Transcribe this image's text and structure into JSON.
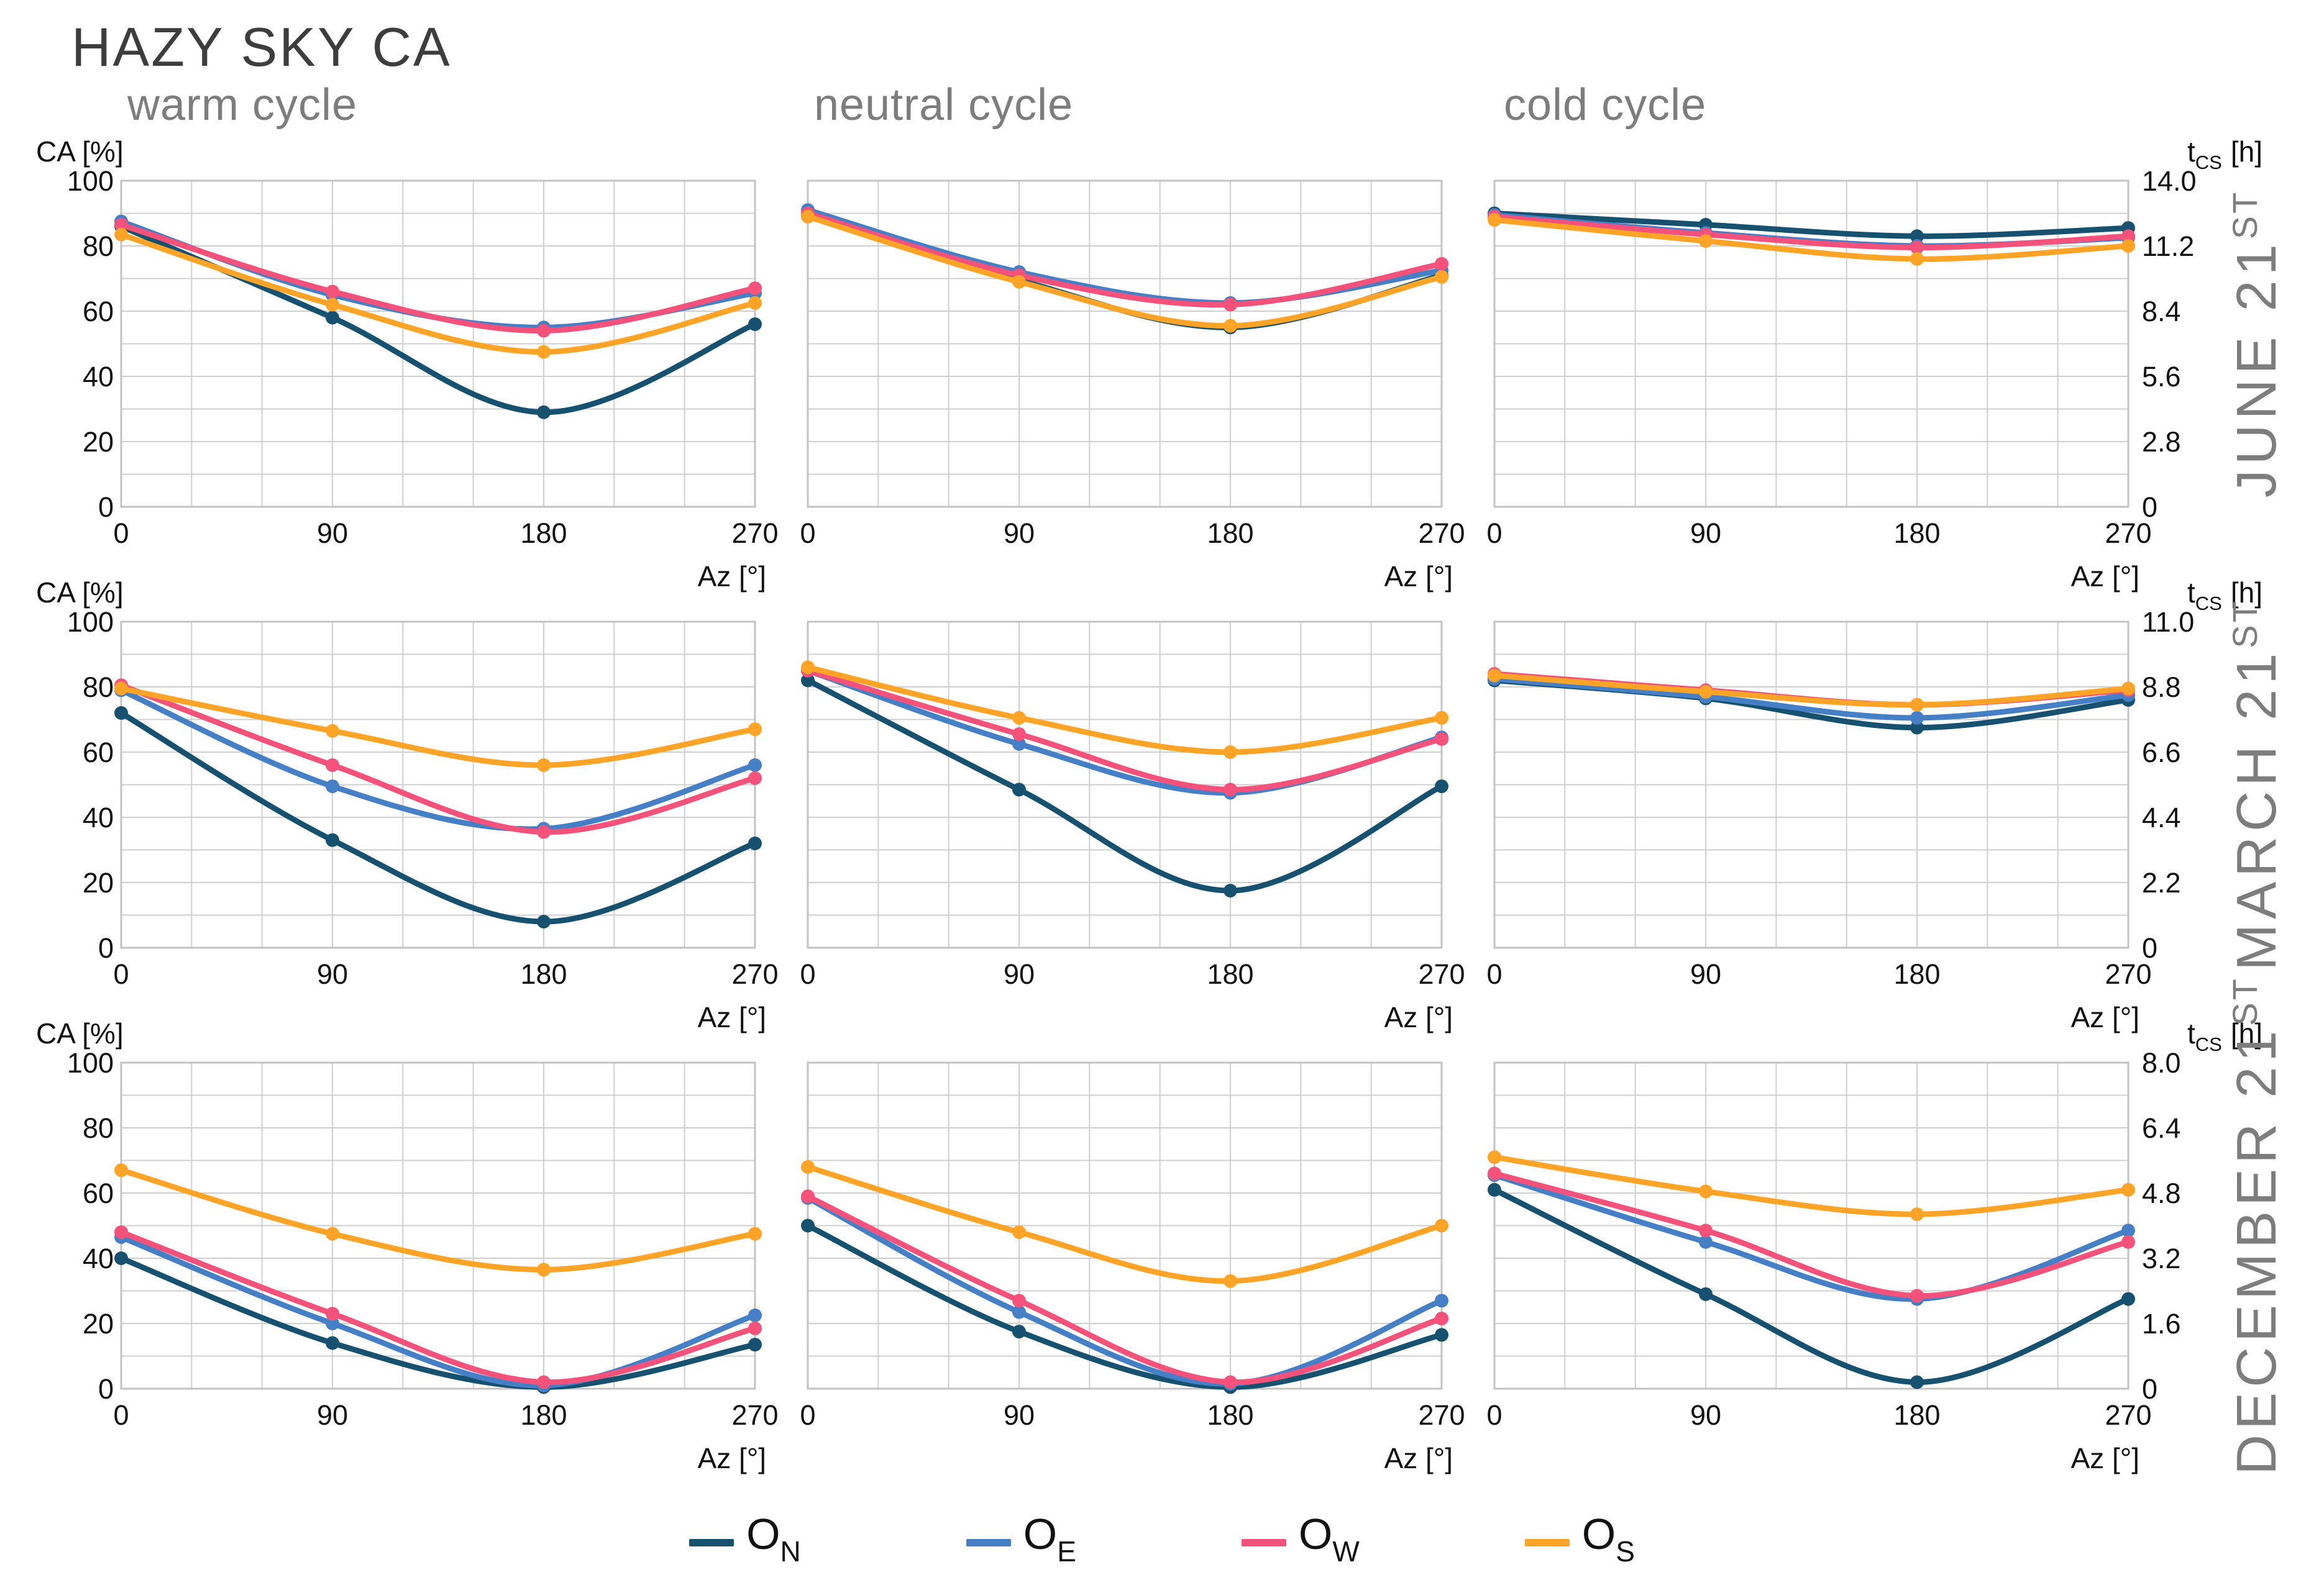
{
  "title": "HAZY SKY CA",
  "column_titles": [
    "warm cycle",
    "neutral cycle",
    "cold cycle"
  ],
  "axes": {
    "left_label": "CA [%]",
    "right_label_base": "t",
    "right_label_sub": "CS",
    "right_label_unit": "[h]",
    "x_label": "Az [°]",
    "x_ticks": [
      0,
      90,
      180,
      270
    ],
    "x_max": 270,
    "x_gridline_step": 30,
    "left_ticks": [
      0,
      20,
      40,
      60,
      80,
      100
    ],
    "ylim": [
      0,
      100
    ],
    "y_gridline_step": 10,
    "grid": true
  },
  "legend": [
    {
      "id": "O_N",
      "base": "O",
      "sub": "N",
      "color": "#16526F"
    },
    {
      "id": "O_E",
      "base": "O",
      "sub": "E",
      "color": "#4580C6"
    },
    {
      "id": "O_W",
      "base": "O",
      "sub": "W",
      "color": "#F4527B"
    },
    {
      "id": "O_S",
      "base": "O",
      "sub": "S",
      "color": "#FFA426"
    }
  ],
  "chart_data": [
    {
      "type": "line",
      "row_label": "JUNE 21",
      "row_label_sup": "ST",
      "right_axis_max": 14.0,
      "right_axis_ticks": [
        "0",
        "2.8",
        "5.6",
        "8.4",
        "11.2",
        "14.0"
      ],
      "x": [
        0,
        90,
        180,
        270
      ],
      "charts": [
        {
          "column": "warm cycle",
          "series": {
            "O_N": [
              86,
              58,
              29,
              56
            ],
            "O_E": [
              87.5,
              65,
              55,
              65.5
            ],
            "O_W": [
              86.5,
              66,
              54,
              67
            ],
            "O_S": [
              83.5,
              62,
              47.5,
              62.5
            ]
          }
        },
        {
          "column": "neutral cycle",
          "series": {
            "O_N": [
              89.5,
              69.5,
              55,
              71
            ],
            "O_E": [
              91,
              72,
              62.5,
              72.5
            ],
            "O_W": [
              90,
              71,
              62,
              74.5
            ],
            "O_S": [
              89,
              69,
              55.5,
              70.5
            ]
          }
        },
        {
          "column": "cold cycle",
          "series": {
            "O_N": [
              90,
              86.5,
              83,
              85.5
            ],
            "O_E": [
              89.5,
              84,
              80,
              82.5
            ],
            "O_W": [
              89,
              83.5,
              79.5,
              83
            ],
            "O_S": [
              88,
              81.5,
              76,
              80
            ]
          }
        }
      ]
    },
    {
      "type": "line",
      "row_label": "MARCH 21",
      "row_label_sup": "ST",
      "right_axis_max": 11.0,
      "right_axis_ticks": [
        "0",
        "2.2",
        "4.4",
        "6.6",
        "8.8",
        "11.0"
      ],
      "x": [
        0,
        90,
        180,
        270
      ],
      "charts": [
        {
          "column": "warm cycle",
          "series": {
            "O_N": [
              72,
              33,
              8,
              32
            ],
            "O_E": [
              79,
              49.5,
              36.5,
              56
            ],
            "O_W": [
              80.5,
              56,
              35.5,
              52
            ],
            "O_S": [
              79.5,
              66.5,
              56,
              67
            ]
          }
        },
        {
          "column": "neutral cycle",
          "series": {
            "O_N": [
              82,
              48.5,
              17.5,
              49.5
            ],
            "O_E": [
              85,
              62.5,
              47.5,
              64.5
            ],
            "O_W": [
              85,
              65.5,
              48.5,
              64
            ],
            "O_S": [
              86,
              70.5,
              60,
              70.5
            ]
          }
        },
        {
          "column": "cold cycle",
          "series": {
            "O_N": [
              82,
              76.5,
              67.5,
              76
            ],
            "O_E": [
              82.5,
              77,
              70.5,
              77.5
            ],
            "O_W": [
              84,
              79,
              74.5,
              79
            ],
            "O_S": [
              83.5,
              78.5,
              74.5,
              79.5
            ]
          }
        }
      ]
    },
    {
      "type": "line",
      "row_label": "DECEMBER 21",
      "row_label_sup": "ST",
      "right_axis_max": 8.0,
      "right_axis_ticks": [
        "0",
        "1.6",
        "3.2",
        "4.8",
        "6.4",
        "8.0"
      ],
      "x": [
        0,
        90,
        180,
        270
      ],
      "charts": [
        {
          "column": "warm cycle",
          "series": {
            "O_N": [
              40,
              14,
              0.5,
              13.5
            ],
            "O_E": [
              46.5,
              20,
              1,
              22.5
            ],
            "O_W": [
              48,
              23,
              2,
              18.5
            ],
            "O_S": [
              67,
              47.5,
              36.5,
              47.5
            ]
          }
        },
        {
          "column": "neutral cycle",
          "series": {
            "O_N": [
              50,
              17.5,
              0.5,
              16.5
            ],
            "O_E": [
              58.5,
              23.5,
              1.5,
              27
            ],
            "O_W": [
              59,
              27,
              2,
              21.5
            ],
            "O_S": [
              68,
              48,
              33,
              50
            ]
          }
        },
        {
          "column": "cold cycle",
          "series": {
            "O_N": [
              61,
              29,
              2,
              27.5
            ],
            "O_E": [
              65.5,
              45,
              27.5,
              48.5
            ],
            "O_W": [
              66,
              48.5,
              28.5,
              45
            ],
            "O_S": [
              71,
              60.5,
              53.5,
              61
            ]
          }
        }
      ]
    }
  ]
}
